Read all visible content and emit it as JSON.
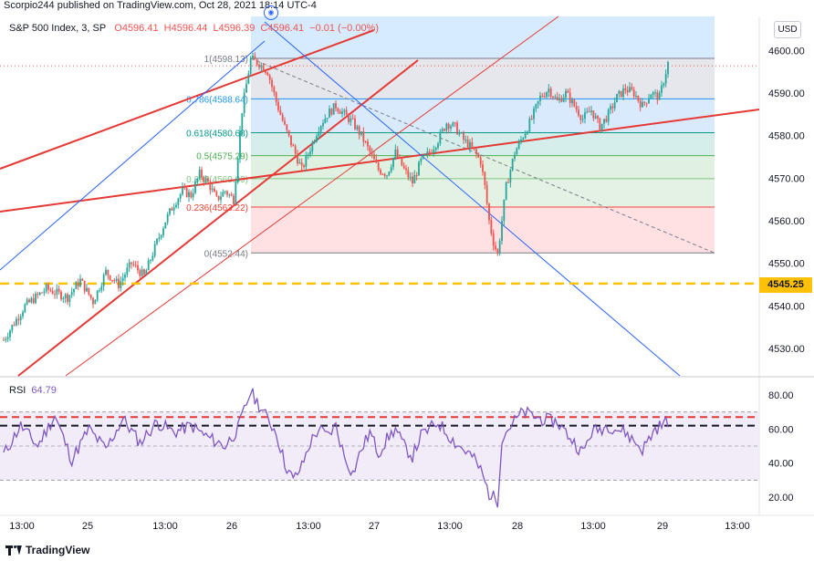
{
  "header": {
    "publish_line": "Scorpio244 published on TradingView.com, Oct 28, 2021 18:14 UTC-4"
  },
  "symbol": {
    "name": "S&P 500 Index, 3, SP",
    "open": "O4596.41",
    "high": "H4596.44",
    "low": "L4596.39",
    "close": "C4596.41",
    "change": "−0.01 (−0.00%)"
  },
  "currency_badge": "USD",
  "price_tag": "4545.25",
  "rsi": {
    "label": "RSI",
    "value": "64.79"
  },
  "footer": {
    "brand": "TradingView"
  },
  "colors": {
    "up": "#26a69a",
    "down": "#ef5350",
    "trendline": "#e53935",
    "channel_blue": "#2962ff",
    "rsi_line": "#7e57c2",
    "yellow_level": "#ffc107"
  },
  "chart_data": [
    {
      "type": "candlestick",
      "title": "S&P 500 Index, 3, SP",
      "x_ticks": [
        "13:00",
        "25",
        "13:00",
        "26",
        "13:00",
        "27",
        "13:00",
        "28",
        "13:00",
        "29",
        "13:00"
      ],
      "y_ticks": [
        4530.0,
        4540.0,
        4550.0,
        4560.0,
        4570.0,
        4580.0,
        4590.0,
        4600.0
      ],
      "ylim": [
        4524,
        4608
      ],
      "price_path": [
        [
          0,
          4532
        ],
        [
          5,
          4540
        ],
        [
          10,
          4544
        ],
        [
          15,
          4542
        ],
        [
          18,
          4546
        ],
        [
          21,
          4541
        ],
        [
          24,
          4548
        ],
        [
          27,
          4545
        ],
        [
          30,
          4550
        ],
        [
          33,
          4547
        ],
        [
          36,
          4555
        ],
        [
          38,
          4560
        ],
        [
          40,
          4564
        ],
        [
          42,
          4567
        ],
        [
          44,
          4566
        ],
        [
          46,
          4571
        ],
        [
          48,
          4569
        ],
        [
          50,
          4565
        ],
        [
          52,
          4567
        ],
        [
          54,
          4565
        ],
        [
          56,
          4586
        ],
        [
          58,
          4598
        ],
        [
          60,
          4597
        ],
        [
          62,
          4595
        ],
        [
          64,
          4588
        ],
        [
          66,
          4582
        ],
        [
          68,
          4577
        ],
        [
          70,
          4572
        ],
        [
          72,
          4577
        ],
        [
          74,
          4582
        ],
        [
          76,
          4585
        ],
        [
          78,
          4587
        ],
        [
          80,
          4585
        ],
        [
          82,
          4583
        ],
        [
          84,
          4580
        ],
        [
          86,
          4576
        ],
        [
          88,
          4572
        ],
        [
          90,
          4571
        ],
        [
          92,
          4576
        ],
        [
          94,
          4572
        ],
        [
          96,
          4569
        ],
        [
          98,
          4574
        ],
        [
          100,
          4576
        ],
        [
          102,
          4579
        ],
        [
          104,
          4583
        ],
        [
          106,
          4582
        ],
        [
          108,
          4579
        ],
        [
          110,
          4577
        ],
        [
          112,
          4574
        ],
        [
          113,
          4568
        ],
        [
          114,
          4560
        ],
        [
          115,
          4555
        ],
        [
          116,
          4552
        ],
        [
          118,
          4568
        ],
        [
          120,
          4576
        ],
        [
          122,
          4580
        ],
        [
          124,
          4584
        ],
        [
          126,
          4589
        ],
        [
          128,
          4591
        ],
        [
          130,
          4588
        ],
        [
          132,
          4590
        ],
        [
          134,
          4587
        ],
        [
          136,
          4584
        ],
        [
          138,
          4586
        ],
        [
          140,
          4582
        ],
        [
          142,
          4585
        ],
        [
          144,
          4589
        ],
        [
          146,
          4591
        ],
        [
          148,
          4590
        ],
        [
          150,
          4587
        ],
        [
          152,
          4590
        ],
        [
          154,
          4589
        ],
        [
          156,
          4597
        ]
      ],
      "fibonacci": [
        {
          "ratio": "1",
          "level": 4598.13,
          "label": "1(4598.13)"
        },
        {
          "ratio": "0.786",
          "level": 4588.64,
          "label": "0.786(4588.64)"
        },
        {
          "ratio": "0.618",
          "level": 4580.68,
          "label": "0.618(4580.68)"
        },
        {
          "ratio": "0.5",
          "level": 4575.29,
          "label": "0.5(4575.29)"
        },
        {
          "ratio": "0.382",
          "level": 4569.89,
          "label": "0.382(4569.89)"
        },
        {
          "ratio": "0.236",
          "level": 4563.22,
          "label": "0.236(4563.22)"
        },
        {
          "ratio": "0",
          "level": 4552.44,
          "label": "0(4552.44)"
        }
      ],
      "horizontal_level": 4545.25,
      "last_price": 4596.41
    },
    {
      "type": "line",
      "title": "RSI",
      "value": 64.79,
      "y_ticks": [
        20.0,
        40.0,
        60.0,
        80.0
      ],
      "ylim": [
        12,
        88
      ],
      "band": [
        30,
        70
      ],
      "rsi_path": [
        [
          0,
          45
        ],
        [
          4,
          62
        ],
        [
          8,
          50
        ],
        [
          12,
          68
        ],
        [
          16,
          42
        ],
        [
          20,
          60
        ],
        [
          24,
          48
        ],
        [
          28,
          66
        ],
        [
          32,
          52
        ],
        [
          36,
          64
        ],
        [
          40,
          58
        ],
        [
          44,
          62
        ],
        [
          48,
          55
        ],
        [
          52,
          50
        ],
        [
          55,
          60
        ],
        [
          58,
          82
        ],
        [
          61,
          70
        ],
        [
          64,
          58
        ],
        [
          66,
          40
        ],
        [
          68,
          30
        ],
        [
          70,
          38
        ],
        [
          72,
          52
        ],
        [
          74,
          60
        ],
        [
          76,
          56
        ],
        [
          78,
          62
        ],
        [
          80,
          44
        ],
        [
          82,
          34
        ],
        [
          84,
          48
        ],
        [
          86,
          58
        ],
        [
          88,
          46
        ],
        [
          90,
          54
        ],
        [
          92,
          60
        ],
        [
          94,
          50
        ],
        [
          96,
          44
        ],
        [
          98,
          56
        ],
        [
          100,
          60
        ],
        [
          102,
          64
        ],
        [
          104,
          58
        ],
        [
          106,
          52
        ],
        [
          108,
          48
        ],
        [
          110,
          44
        ],
        [
          112,
          36
        ],
        [
          114,
          22
        ],
        [
          116,
          18
        ],
        [
          117,
          55
        ],
        [
          119,
          62
        ],
        [
          122,
          70
        ],
        [
          126,
          66
        ],
        [
          130,
          64
        ],
        [
          134,
          52
        ],
        [
          136,
          46
        ],
        [
          138,
          58
        ],
        [
          142,
          62
        ],
        [
          146,
          58
        ],
        [
          150,
          48
        ],
        [
          153,
          60
        ],
        [
          156,
          64.79
        ]
      ]
    }
  ]
}
